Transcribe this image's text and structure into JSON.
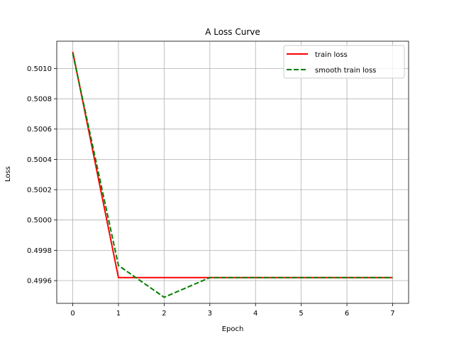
{
  "chart_data": {
    "type": "line",
    "title": "A Loss Curve",
    "xlabel": "Epoch",
    "ylabel": "Loss",
    "xlim": [
      -0.35,
      7.35
    ],
    "ylim": [
      0.49945,
      0.50118
    ],
    "xticks": [
      0,
      1,
      2,
      3,
      4,
      5,
      6,
      7
    ],
    "xtick_labels": [
      "0",
      "1",
      "2",
      "3",
      "4",
      "5",
      "6",
      "7"
    ],
    "yticks": [
      0.4996,
      0.4998,
      0.5,
      0.5002,
      0.5004,
      0.5006,
      0.5008,
      0.501
    ],
    "ytick_labels": [
      "0.4996",
      "0.4998",
      "0.5000",
      "0.5002",
      "0.5004",
      "0.5006",
      "0.5008",
      "0.5010"
    ],
    "grid": true,
    "legend_position": "top-right",
    "x": [
      0,
      1,
      2,
      3,
      4,
      5,
      6,
      7
    ],
    "series": [
      {
        "name": "train loss",
        "color": "#ff0000",
        "style": "solid",
        "values": [
          0.50111,
          0.49962,
          0.49962,
          0.49962,
          0.49962,
          0.49962,
          0.49962,
          0.49962
        ]
      },
      {
        "name": "smooth train loss",
        "color": "#008000",
        "style": "dashed",
        "values": [
          0.5011,
          0.4997,
          0.49949,
          0.49962,
          0.49962,
          0.49962,
          0.49962,
          0.49962
        ]
      }
    ]
  }
}
